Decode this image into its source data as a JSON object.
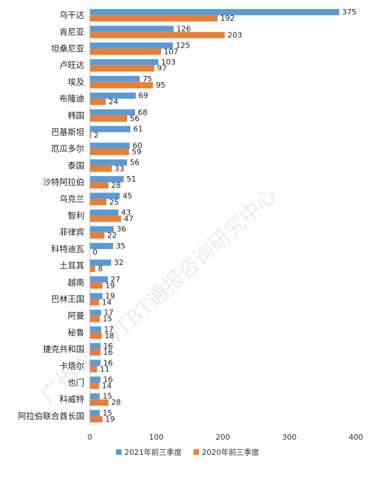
{
  "chart_data": {
    "type": "bar",
    "orientation": "horizontal",
    "categories": [
      "乌干达",
      "肯尼亚",
      "坦桑尼亚",
      "卢旺达",
      "埃及",
      "布隆迪",
      "韩国",
      "巴基斯坦",
      "厄瓜多尔",
      "泰国",
      "沙特阿拉伯",
      "乌克兰",
      "智利",
      "菲律宾",
      "科特迪瓦",
      "土耳其",
      "越南",
      "巴林王国",
      "阿曼",
      "秘鲁",
      "捷克共和国",
      "卡塔尔",
      "也门",
      "科威特",
      "阿拉伯联合酋长国"
    ],
    "series": [
      {
        "name": "2021年前三季度",
        "color": "#5B9BD5",
        "values": [
          375,
          126,
          125,
          103,
          75,
          69,
          68,
          61,
          60,
          56,
          51,
          45,
          43,
          36,
          35,
          32,
          27,
          19,
          17,
          17,
          16,
          16,
          16,
          15,
          15
        ]
      },
      {
        "name": "2020年前三季度",
        "color": "#ED7D31",
        "values": [
          192,
          203,
          107,
          97,
          95,
          24,
          56,
          2,
          59,
          33,
          28,
          25,
          47,
          22,
          0,
          8,
          19,
          14,
          15,
          18,
          16,
          11,
          14,
          28,
          19
        ]
      }
    ],
    "xlim": [
      0,
      400
    ],
    "xticks": [
      0,
      100,
      200,
      300,
      400
    ],
    "grid": false,
    "legend": "bottom",
    "watermark": "广州WTO/TBT通报咨询研究中心"
  }
}
